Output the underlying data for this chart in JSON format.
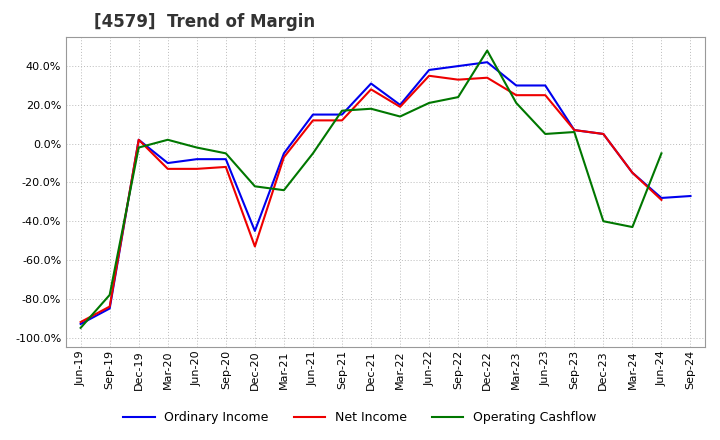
{
  "title": "[4579]  Trend of Margin",
  "x_labels": [
    "Jun-19",
    "Sep-19",
    "Dec-19",
    "Mar-20",
    "Jun-20",
    "Sep-20",
    "Dec-20",
    "Mar-21",
    "Jun-21",
    "Sep-21",
    "Dec-21",
    "Mar-22",
    "Jun-22",
    "Sep-22",
    "Dec-22",
    "Mar-23",
    "Jun-23",
    "Sep-23",
    "Dec-23",
    "Mar-24",
    "Jun-24",
    "Sep-24"
  ],
  "ordinary_income": [
    -93,
    -85,
    2,
    -10,
    -8,
    -8,
    -45,
    -5,
    15,
    15,
    31,
    20,
    38,
    40,
    42,
    30,
    30,
    7,
    5,
    -15,
    -28,
    -27
  ],
  "net_income": [
    -92,
    -84,
    2,
    -13,
    -13,
    -12,
    -53,
    -7,
    12,
    12,
    28,
    19,
    35,
    33,
    34,
    25,
    25,
    7,
    5,
    -15,
    -29,
    null
  ],
  "operating_cashflow": [
    -95,
    -78,
    -2,
    2,
    -2,
    -5,
    -22,
    -24,
    -5,
    17,
    18,
    14,
    21,
    24,
    48,
    21,
    5,
    6,
    -40,
    -43,
    -5,
    null
  ],
  "ylim": [
    -105,
    55
  ],
  "yticks": [
    -100,
    -80,
    -60,
    -40,
    -20,
    0,
    20,
    40
  ],
  "background_color": "#ffffff",
  "plot_bg_color": "#ffffff",
  "grid_color": "#bbbbbb",
  "line_color_oi": "#0000ee",
  "line_color_ni": "#ee0000",
  "line_color_ocf": "#007700",
  "line_width": 1.5,
  "title_fontsize": 12,
  "tick_fontsize": 8,
  "legend_fontsize": 9
}
